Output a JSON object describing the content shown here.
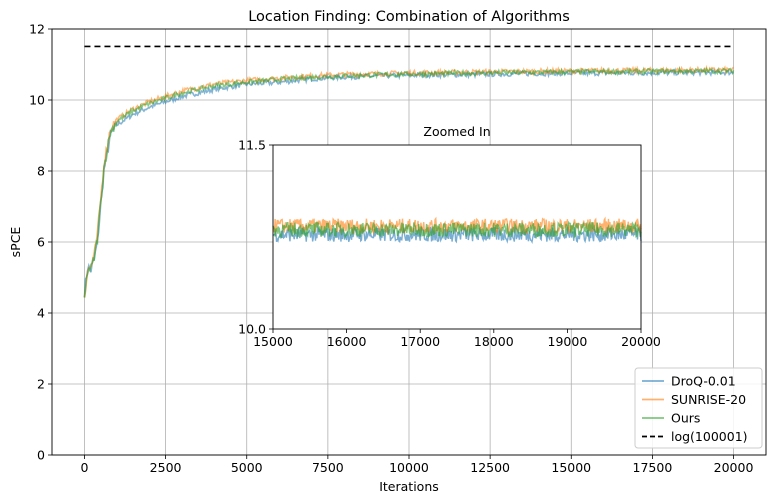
{
  "chart_data": {
    "type": "line",
    "title": "Location Finding: Combination of Algorithms",
    "xlabel": "Iterations",
    "ylabel": "sPCE",
    "xlim": [
      -1000,
      21000
    ],
    "ylim": [
      0,
      12
    ],
    "xticks": [
      0,
      2500,
      5000,
      7500,
      10000,
      12500,
      15000,
      17500,
      20000
    ],
    "yticks": [
      0,
      2,
      4,
      6,
      8,
      10,
      12
    ],
    "grid": true,
    "legend_position": "lower-right",
    "colors": {
      "DroQ-0.01": "#1f77b4",
      "SUNRISE-20": "#ff7f0e",
      "Ours": "#2ca02c",
      "log(100001)": "#000000"
    },
    "series": [
      {
        "name": "DroQ-0.01",
        "x": [
          0,
          100,
          200,
          300,
          400,
          600,
          800,
          1000,
          1500,
          2000,
          3000,
          4000,
          5000,
          6000,
          7000,
          8000,
          10000,
          12000,
          14000,
          16000,
          18000,
          20000
        ],
        "y": [
          4.6,
          5.3,
          5.2,
          5.5,
          6.0,
          8.0,
          9.0,
          9.3,
          9.6,
          9.8,
          10.1,
          10.3,
          10.45,
          10.5,
          10.6,
          10.65,
          10.7,
          10.72,
          10.75,
          10.76,
          10.77,
          10.78
        ]
      },
      {
        "name": "SUNRISE-20",
        "x": [
          0,
          100,
          200,
          300,
          400,
          600,
          800,
          1000,
          1500,
          2000,
          3000,
          4000,
          5000,
          6000,
          7000,
          8000,
          10000,
          12000,
          14000,
          16000,
          18000,
          20000
        ],
        "y": [
          4.5,
          5.2,
          5.3,
          5.6,
          6.2,
          8.2,
          9.2,
          9.45,
          9.75,
          9.95,
          10.25,
          10.45,
          10.55,
          10.62,
          10.68,
          10.72,
          10.76,
          10.79,
          10.81,
          10.83,
          10.84,
          10.85
        ]
      },
      {
        "name": "Ours",
        "x": [
          0,
          100,
          200,
          300,
          400,
          600,
          800,
          1000,
          1500,
          2000,
          3000,
          4000,
          5000,
          6000,
          7000,
          8000,
          10000,
          12000,
          14000,
          16000,
          18000,
          20000
        ],
        "y": [
          4.4,
          5.2,
          5.25,
          5.55,
          6.1,
          8.1,
          9.1,
          9.4,
          9.7,
          9.9,
          10.2,
          10.4,
          10.5,
          10.58,
          10.64,
          10.68,
          10.73,
          10.76,
          10.78,
          10.8,
          10.81,
          10.82
        ]
      },
      {
        "name": "log(100001)",
        "style": "dashed",
        "x": [
          0,
          20000
        ],
        "y": [
          11.51,
          11.51
        ]
      }
    ],
    "inset": {
      "title": "Zoomed In",
      "xlim": [
        15000,
        20000
      ],
      "ylim": [
        10.0,
        11.5
      ],
      "xticks": [
        15000,
        16000,
        17000,
        18000,
        19000,
        20000
      ],
      "ytick_labels": [
        "10.0",
        "11.5"
      ],
      "yticks": [
        10.0,
        11.5
      ],
      "grid": false,
      "series_levels": {
        "DroQ-0.01": 10.77,
        "SUNRISE-20": 10.84,
        "Ours": 10.81
      },
      "noise_amplitude": 0.06
    }
  }
}
